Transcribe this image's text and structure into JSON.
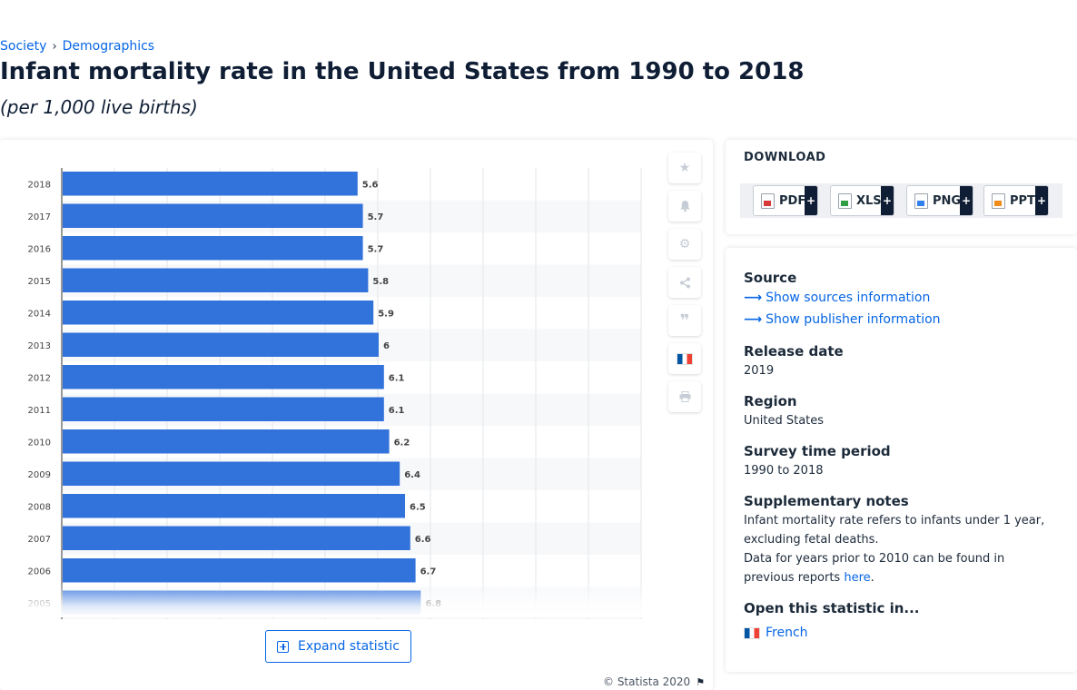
{
  "breadcrumb": {
    "items": [
      "Society",
      "Demographics"
    ],
    "separator": "›"
  },
  "title": "Infant mortality rate in the United States from 1990 to 2018",
  "subtitle": "(per 1,000 live births)",
  "chart_data": {
    "type": "bar",
    "orientation": "horizontal",
    "categories": [
      "2018",
      "2017",
      "2016",
      "2015",
      "2014",
      "2013",
      "2012",
      "2011",
      "2010",
      "2009",
      "2008",
      "2007",
      "2006",
      "2005"
    ],
    "values": [
      5.6,
      5.7,
      5.7,
      5.8,
      5.9,
      6,
      6.1,
      6.1,
      6.2,
      6.4,
      6.5,
      6.6,
      6.7,
      6.8
    ],
    "value_labels": [
      "5.6",
      "5.7",
      "5.7",
      "5.8",
      "5.9",
      "6",
      "6.1",
      "6.1",
      "6.2",
      "6.4",
      "6.5",
      "6.6",
      "6.7",
      "6.8"
    ],
    "xlim": [
      0,
      11
    ],
    "grid": true,
    "bar_color": "#3272db",
    "stripe_color": "#f7f8fa"
  },
  "tools": [
    "star-icon",
    "bell-icon",
    "gear-icon",
    "share-icon",
    "quote-icon",
    "french-flag-icon",
    "print-icon"
  ],
  "expand_label": "Expand statistic",
  "copyright": "© Statista 2020",
  "download": {
    "title": "DOWNLOAD",
    "buttons": [
      {
        "label": "PDF",
        "plus": "+"
      },
      {
        "label": "XLS",
        "plus": "+"
      },
      {
        "label": "PNG",
        "plus": "+"
      },
      {
        "label": "PPT",
        "plus": "+"
      }
    ]
  },
  "info": {
    "source_heading": "Source",
    "show_sources": "Show sources information",
    "show_publisher": "Show publisher information",
    "release_heading": "Release date",
    "release_value": "2019",
    "region_heading": "Region",
    "region_value": "United States",
    "survey_heading": "Survey time period",
    "survey_value": "1990 to 2018",
    "notes_heading": "Supplementary notes",
    "notes_line1": "Infant mortality rate refers to infants under 1 year, excluding fetal deaths.",
    "notes_line2": "Data for years prior to 2010 can be found in previous reports",
    "notes_link": "here",
    "notes_end": ".",
    "open_heading": "Open this statistic in...",
    "open_french": "French"
  },
  "colors": {
    "link": "#0666e5",
    "title": "#0f1e35"
  }
}
